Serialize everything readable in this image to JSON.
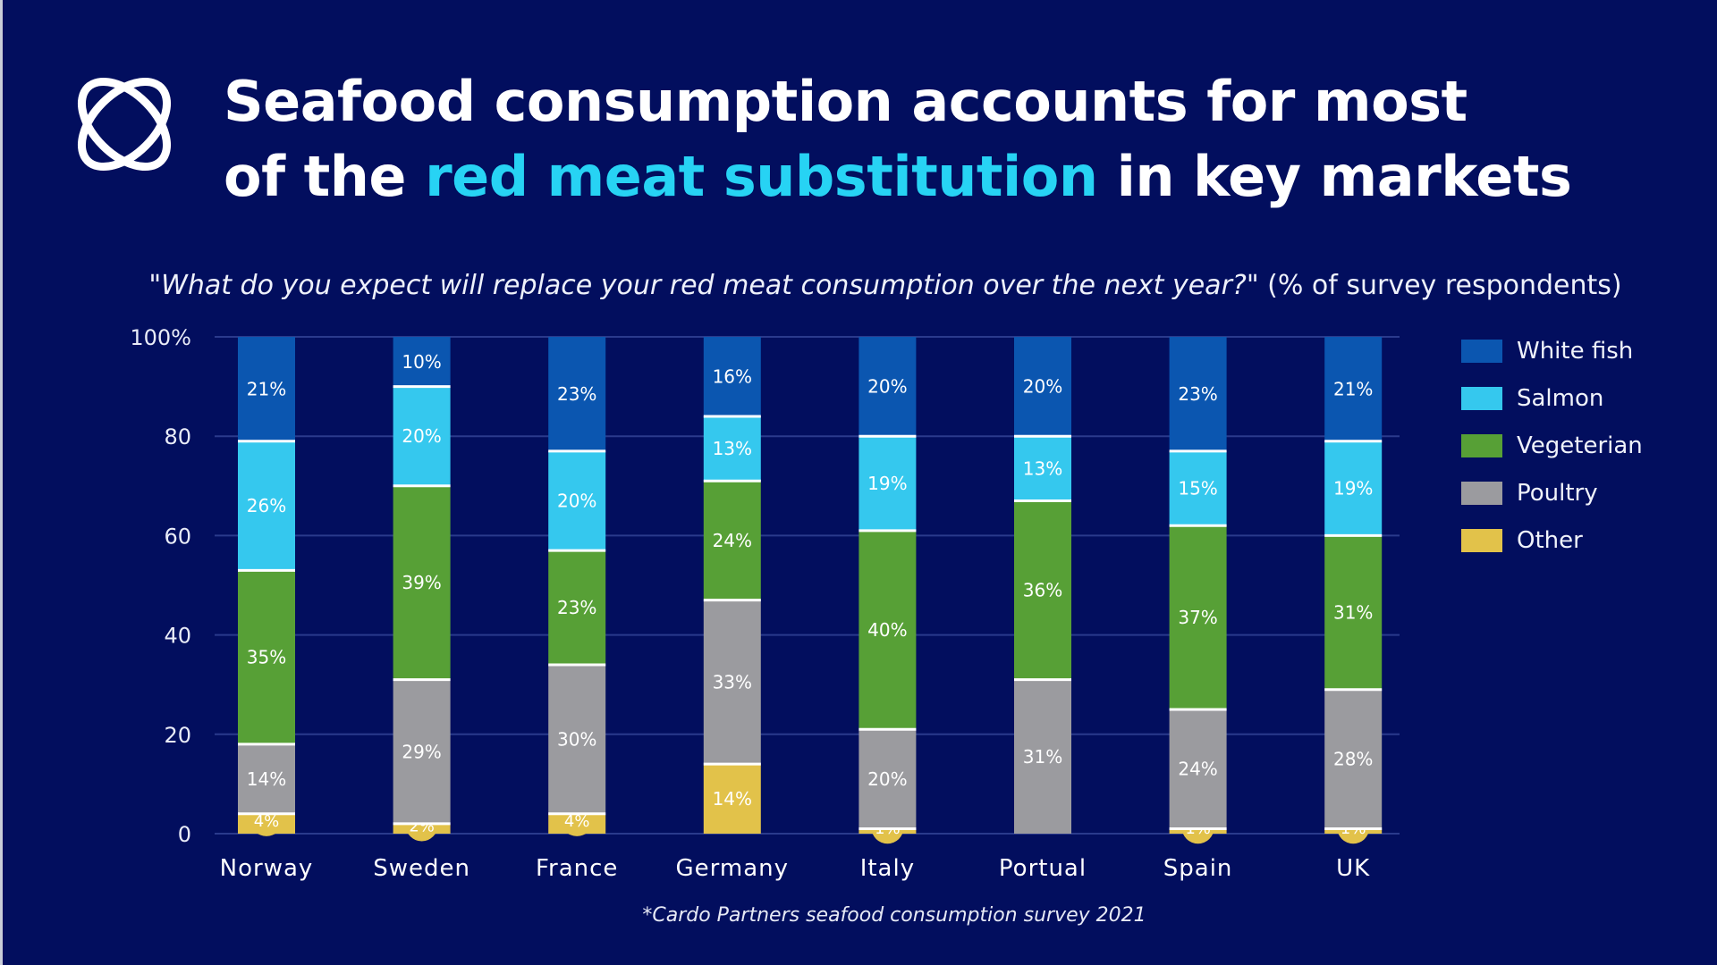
{
  "header": {
    "title_part1": "Seafood consumption accounts for most",
    "title_part2_prefix": "of the ",
    "title_accent": "red meat substitution",
    "title_part2_suffix": " in key markets",
    "logo_icon": "orbit-logo-icon"
  },
  "subtitle": {
    "question": "\"What do you expect will replace your red meat consumption over the next year?\"",
    "unit_note": " (% of survey respondents)"
  },
  "footnote": "*Cardo Partners seafood consumption survey 2021",
  "chart_data": {
    "type": "bar",
    "stacked": true,
    "categories": [
      "Norway",
      "Sweden",
      "France",
      "Germany",
      "Italy",
      "Portual",
      "Spain",
      "UK"
    ],
    "ylim": [
      0,
      100
    ],
    "yticks": [
      0,
      20,
      40,
      60,
      80,
      100
    ],
    "ytick_labels": [
      "0",
      "20",
      "40",
      "60",
      "80",
      "100%"
    ],
    "grid": true,
    "legend_position": "right",
    "series": [
      {
        "name": "Other",
        "color": "#e2c24a",
        "values": [
          4,
          2,
          4,
          14,
          1,
          0,
          1,
          1
        ],
        "labels": [
          "4%",
          "2%",
          "4%",
          "14%",
          "1%",
          "",
          "1%",
          "1%"
        ]
      },
      {
        "name": "Poultry",
        "color": "#9b9b9f",
        "values": [
          14,
          29,
          30,
          33,
          20,
          31,
          24,
          28
        ],
        "labels": [
          "14%",
          "29%",
          "30%",
          "33%",
          "20%",
          "31%",
          "24%",
          "28%"
        ]
      },
      {
        "name": "Vegeterian",
        "color": "#57a036",
        "values": [
          35,
          39,
          23,
          24,
          40,
          36,
          37,
          31
        ],
        "labels": [
          "35%",
          "39%",
          "23%",
          "24%",
          "40%",
          "36%",
          "37%",
          "31%"
        ]
      },
      {
        "name": "Salmon",
        "color": "#35c8ee",
        "values": [
          26,
          20,
          20,
          13,
          19,
          13,
          15,
          19
        ],
        "labels": [
          "26%",
          "20%",
          "20%",
          "13%",
          "19%",
          "13%",
          "15%",
          "19%"
        ]
      },
      {
        "name": "White fish",
        "color": "#0b56b0",
        "values": [
          21,
          10,
          23,
          16,
          20,
          20,
          23,
          21
        ],
        "labels": [
          "21%",
          "10%",
          "23%",
          "16%",
          "20%",
          "20%",
          "23%",
          "21%"
        ]
      }
    ],
    "legend_order": [
      "White fish",
      "Salmon",
      "Vegeterian",
      "Poultry",
      "Other"
    ]
  }
}
